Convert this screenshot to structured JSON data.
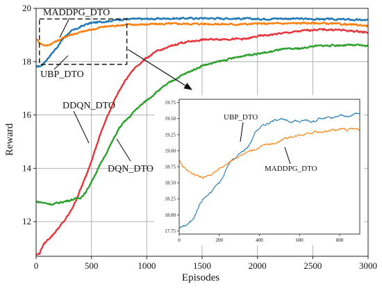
{
  "chart_data": [
    {
      "type": "line",
      "title": "",
      "xlabel": "Episodes",
      "ylabel": "Reward",
      "xlim": [
        0,
        3000
      ],
      "ylim": [
        10.7,
        20
      ],
      "xticks": [
        0,
        500,
        1000,
        1500,
        2000,
        2500,
        3000
      ],
      "yticks": [
        12,
        14,
        16,
        18,
        20
      ],
      "grid": true,
      "series": [
        {
          "name": "UBP_DTO",
          "color": "#1f77b4",
          "points": [
            [
              0,
              17.8
            ],
            [
              50,
              17.85
            ],
            [
              100,
              18.1
            ],
            [
              150,
              18.35
            ],
            [
              200,
              18.6
            ],
            [
              250,
              18.9
            ],
            [
              300,
              19.1
            ],
            [
              350,
              19.2
            ],
            [
              400,
              19.3
            ],
            [
              450,
              19.4
            ],
            [
              500,
              19.45
            ],
            [
              600,
              19.5
            ],
            [
              700,
              19.55
            ],
            [
              800,
              19.6
            ],
            [
              1000,
              19.6
            ],
            [
              1200,
              19.62
            ],
            [
              1500,
              19.63
            ],
            [
              1800,
              19.62
            ],
            [
              2000,
              19.6
            ],
            [
              2200,
              19.62
            ],
            [
              2500,
              19.6
            ],
            [
              2800,
              19.58
            ],
            [
              3000,
              19.55
            ]
          ]
        },
        {
          "name": "MADDPG_DTO",
          "color": "#ff7f0e",
          "points": [
            [
              0,
              18.85
            ],
            [
              50,
              18.65
            ],
            [
              100,
              18.6
            ],
            [
              150,
              18.7
            ],
            [
              200,
              18.8
            ],
            [
              300,
              19.0
            ],
            [
              400,
              19.1
            ],
            [
              500,
              19.2
            ],
            [
              600,
              19.3
            ],
            [
              700,
              19.35
            ],
            [
              800,
              19.38
            ],
            [
              1000,
              19.4
            ],
            [
              1200,
              19.42
            ],
            [
              1500,
              19.42
            ],
            [
              1800,
              19.4
            ],
            [
              2000,
              19.42
            ],
            [
              2200,
              19.43
            ],
            [
              2500,
              19.45
            ],
            [
              2800,
              19.4
            ],
            [
              3000,
              19.35
            ]
          ]
        },
        {
          "name": "DDQN_DTO",
          "color": "#e8333a",
          "points": [
            [
              0,
              10.75
            ],
            [
              30,
              10.8
            ],
            [
              60,
              11.1
            ],
            [
              100,
              11.3
            ],
            [
              150,
              11.5
            ],
            [
              200,
              11.75
            ],
            [
              250,
              12.0
            ],
            [
              300,
              12.3
            ],
            [
              350,
              12.7
            ],
            [
              400,
              13.2
            ],
            [
              450,
              13.7
            ],
            [
              500,
              14.3
            ],
            [
              550,
              14.9
            ],
            [
              600,
              15.5
            ],
            [
              650,
              16.0
            ],
            [
              700,
              16.5
            ],
            [
              750,
              16.9
            ],
            [
              800,
              17.25
            ],
            [
              850,
              17.55
            ],
            [
              900,
              17.8
            ],
            [
              1000,
              18.15
            ],
            [
              1100,
              18.4
            ],
            [
              1200,
              18.55
            ],
            [
              1300,
              18.7
            ],
            [
              1500,
              18.82
            ],
            [
              1700,
              18.85
            ],
            [
              1900,
              18.85
            ],
            [
              2000,
              18.95
            ],
            [
              2200,
              19.05
            ],
            [
              2400,
              19.15
            ],
            [
              2500,
              19.2
            ],
            [
              2700,
              19.2
            ],
            [
              2850,
              19.15
            ],
            [
              3000,
              19.1
            ]
          ]
        },
        {
          "name": "DQN_DTO",
          "color": "#2ca02c",
          "points": [
            [
              0,
              12.75
            ],
            [
              50,
              12.72
            ],
            [
              100,
              12.68
            ],
            [
              150,
              12.65
            ],
            [
              200,
              12.7
            ],
            [
              300,
              12.8
            ],
            [
              350,
              12.85
            ],
            [
              400,
              12.9
            ],
            [
              450,
              13.1
            ],
            [
              500,
              13.5
            ],
            [
              550,
              13.9
            ],
            [
              600,
              14.3
            ],
            [
              650,
              14.7
            ],
            [
              700,
              15.1
            ],
            [
              750,
              15.5
            ],
            [
              800,
              15.75
            ],
            [
              850,
              15.95
            ],
            [
              900,
              16.2
            ],
            [
              1000,
              16.55
            ],
            [
              1100,
              16.9
            ],
            [
              1200,
              17.2
            ],
            [
              1300,
              17.45
            ],
            [
              1400,
              17.65
            ],
            [
              1500,
              17.85
            ],
            [
              1600,
              17.95
            ],
            [
              1700,
              18.05
            ],
            [
              1800,
              18.15
            ],
            [
              1900,
              18.25
            ],
            [
              2000,
              18.3
            ],
            [
              2100,
              18.35
            ],
            [
              2200,
              18.45
            ],
            [
              2400,
              18.5
            ],
            [
              2500,
              18.58
            ],
            [
              2600,
              18.6
            ],
            [
              2800,
              18.62
            ],
            [
              3000,
              18.6
            ]
          ]
        }
      ],
      "annotations": [
        {
          "text": "MADDPG_DTO",
          "series": "MADDPG_DTO"
        },
        {
          "text": "UBP_DTO",
          "series": "UBP_DTO"
        },
        {
          "text": "DDQN_DTO",
          "series": "DDQN_DTO"
        },
        {
          "text": "DQN_DTO",
          "series": "DQN_DTO"
        }
      ],
      "zoom_box": {
        "x": [
          30,
          820
        ],
        "y": [
          17.9,
          19.6
        ]
      }
    },
    {
      "type": "line",
      "title": "",
      "inset": true,
      "xlim": [
        0,
        900
      ],
      "ylim": [
        17.7,
        19.8
      ],
      "xticks": [
        0,
        200,
        400,
        600,
        800
      ],
      "yticks": [
        17.75,
        18.0,
        18.25,
        18.5,
        18.75,
        19.0,
        19.25,
        19.5,
        19.75
      ],
      "ytick_labels": [
        "17.75",
        "18.00",
        "18.25",
        "18.50",
        "18.75",
        "19.00",
        "19.25",
        "19.50",
        "19.75"
      ],
      "series": [
        {
          "name": "UBP_DTO",
          "color": "#1f77b4",
          "points": [
            [
              0,
              17.8
            ],
            [
              20,
              17.82
            ],
            [
              40,
              17.85
            ],
            [
              60,
              17.9
            ],
            [
              80,
              18.0
            ],
            [
              100,
              18.15
            ],
            [
              120,
              18.25
            ],
            [
              140,
              18.3
            ],
            [
              160,
              18.35
            ],
            [
              180,
              18.45
            ],
            [
              200,
              18.5
            ],
            [
              220,
              18.6
            ],
            [
              240,
              18.75
            ],
            [
              260,
              18.85
            ],
            [
              280,
              18.88
            ],
            [
              300,
              18.95
            ],
            [
              320,
              19.0
            ],
            [
              340,
              19.05
            ],
            [
              360,
              19.15
            ],
            [
              380,
              19.3
            ],
            [
              400,
              19.35
            ],
            [
              420,
              19.4
            ],
            [
              440,
              19.42
            ],
            [
              460,
              19.45
            ],
            [
              480,
              19.48
            ],
            [
              500,
              19.5
            ],
            [
              520,
              19.48
            ],
            [
              540,
              19.46
            ],
            [
              560,
              19.45
            ],
            [
              580,
              19.47
            ],
            [
              600,
              19.45
            ],
            [
              620,
              19.47
            ],
            [
              640,
              19.48
            ],
            [
              660,
              19.45
            ],
            [
              680,
              19.47
            ],
            [
              700,
              19.5
            ],
            [
              720,
              19.5
            ],
            [
              740,
              19.52
            ],
            [
              760,
              19.5
            ],
            [
              780,
              19.52
            ],
            [
              800,
              19.55
            ],
            [
              820,
              19.55
            ],
            [
              840,
              19.52
            ],
            [
              860,
              19.55
            ],
            [
              880,
              19.58
            ],
            [
              900,
              19.6
            ]
          ]
        },
        {
          "name": "MADDPG_DTO",
          "color": "#ff7f0e",
          "points": [
            [
              0,
              18.85
            ],
            [
              20,
              18.75
            ],
            [
              40,
              18.7
            ],
            [
              60,
              18.65
            ],
            [
              80,
              18.62
            ],
            [
              100,
              18.6
            ],
            [
              120,
              18.58
            ],
            [
              140,
              18.6
            ],
            [
              160,
              18.62
            ],
            [
              180,
              18.68
            ],
            [
              200,
              18.72
            ],
            [
              220,
              18.75
            ],
            [
              240,
              18.8
            ],
            [
              260,
              18.85
            ],
            [
              280,
              18.88
            ],
            [
              300,
              18.92
            ],
            [
              320,
              18.95
            ],
            [
              340,
              18.98
            ],
            [
              360,
              19.0
            ],
            [
              380,
              19.02
            ],
            [
              400,
              19.05
            ],
            [
              420,
              19.08
            ],
            [
              440,
              19.1
            ],
            [
              460,
              19.1
            ],
            [
              480,
              19.12
            ],
            [
              500,
              19.15
            ],
            [
              520,
              19.18
            ],
            [
              540,
              19.2
            ],
            [
              560,
              19.22
            ],
            [
              580,
              19.22
            ],
            [
              600,
              19.25
            ],
            [
              620,
              19.25
            ],
            [
              640,
              19.28
            ],
            [
              660,
              19.28
            ],
            [
              680,
              19.3
            ],
            [
              700,
              19.28
            ],
            [
              720,
              19.3
            ],
            [
              740,
              19.3
            ],
            [
              760,
              19.32
            ],
            [
              780,
              19.32
            ],
            [
              800,
              19.33
            ],
            [
              820,
              19.34
            ],
            [
              840,
              19.32
            ],
            [
              860,
              19.35
            ],
            [
              880,
              19.34
            ],
            [
              900,
              19.32
            ]
          ]
        }
      ],
      "annotations": [
        {
          "text": "UBP_DTO",
          "series": "UBP_DTO"
        },
        {
          "text": "MADDPG_DTO",
          "series": "MADDPG_DTO"
        }
      ]
    }
  ]
}
